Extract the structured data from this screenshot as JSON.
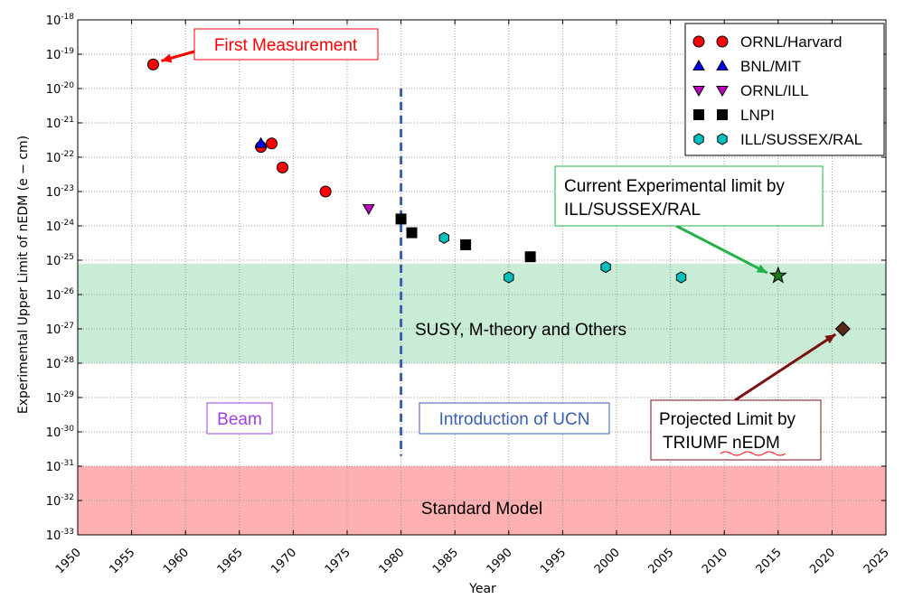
{
  "chart_data": {
    "type": "scatter",
    "xlabel": "Year",
    "ylabel": "Experimental Upper Limit of nEDM (e − cm)",
    "xlim": [
      1950,
      2025
    ],
    "ylim_exponent": [
      -33,
      -18
    ],
    "y_scale": "log",
    "x_ticks": [
      "1950",
      "1955",
      "1960",
      "1965",
      "1970",
      "1975",
      "1980",
      "1985",
      "1990",
      "1995",
      "2000",
      "2005",
      "2010",
      "2015",
      "2020",
      "2025"
    ],
    "y_tick_base": "10",
    "y_tick_exponents": [
      "-33",
      "-32",
      "-31",
      "-30",
      "-29",
      "-28",
      "-27",
      "-26",
      "-25",
      "-24",
      "-23",
      "-22",
      "-21",
      "-20",
      "-19",
      "-18"
    ],
    "grid": true,
    "legend_position": "top-right",
    "series": [
      {
        "name": "ORNL/Harvard",
        "marker": "circle",
        "color": "#ff0000",
        "points": [
          [
            1957,
            -19.3
          ],
          [
            1967,
            -21.7
          ],
          [
            1968,
            -21.6
          ],
          [
            1969,
            -22.3
          ],
          [
            1973,
            -23.0
          ]
        ]
      },
      {
        "name": "BNL/MIT",
        "marker": "triangle-up",
        "color": "#0000ff",
        "points": [
          [
            1967,
            -21.6
          ]
        ]
      },
      {
        "name": "ORNL/ILL",
        "marker": "triangle-down",
        "color": "#bf00bf",
        "points": [
          [
            1977,
            -23.5
          ]
        ]
      },
      {
        "name": "LNPI",
        "marker": "square",
        "color": "#000000",
        "points": [
          [
            1980,
            -23.8
          ],
          [
            1981,
            -24.2
          ],
          [
            1986,
            -24.55
          ],
          [
            1992,
            -24.9
          ]
        ]
      },
      {
        "name": "ILL/SUSSEX/RAL",
        "marker": "hexagon",
        "color": "#00bfbf",
        "points": [
          [
            1984,
            -24.35
          ],
          [
            1990,
            -25.5
          ],
          [
            1999,
            -25.2
          ],
          [
            2006,
            -25.5
          ]
        ]
      }
    ],
    "special_points": [
      {
        "label": "Current Experimental limit by ILL/SUSSEX/RAL",
        "marker": "star",
        "color": "#1a7a1a",
        "x": 2015,
        "y": -25.45
      },
      {
        "label": "Projected Limit by TRIUMF nEDM",
        "marker": "diamond",
        "color": "#5a2a12",
        "x": 2021,
        "y": -27.0
      }
    ],
    "bands": [
      {
        "label": "SUSY, M-theory and Others",
        "y_from": -28.0,
        "y_to": -25.1,
        "color": "#c8ecd6"
      },
      {
        "label": "Standard Model",
        "y_from": -33,
        "y_to": -31,
        "color": "#ffb0b0"
      }
    ],
    "vline": {
      "x": 1980,
      "y_from": -30.7,
      "y_to": -20.0,
      "color": "#3a5fb0"
    },
    "annotations": {
      "first": "First  Measurement",
      "current_line1": "Current Experimental limit by",
      "current_line2": "ILL/SUSSEX/RAL",
      "projected_line1": "Projected Limit by",
      "projected_line2": "TRIUMF nEDM",
      "beam": "Beam",
      "ucn": "Introduction of UCN"
    },
    "colors": {
      "first_note": "#ff0000",
      "beam_note": "#a040e0",
      "ucn_note": "#3a5fb0",
      "current_arrow": "#22b04a",
      "projected_arrow": "#7a1010"
    }
  }
}
